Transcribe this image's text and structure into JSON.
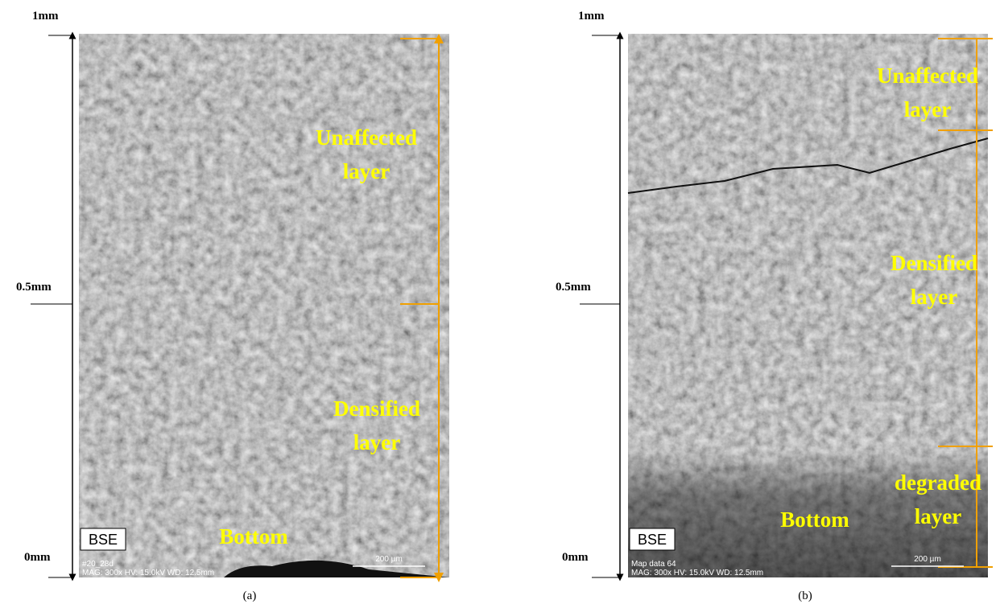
{
  "panels": [
    {
      "label": "(a)",
      "axis_labels": [
        "1mm",
        "0.5mm",
        "0mm"
      ],
      "layers": [
        [
          "Unaffected",
          "layer"
        ],
        [
          "Densified",
          "layer"
        ]
      ],
      "bottom": "Bottom",
      "detector": "BSE",
      "info": [
        "#20_28d",
        "MAG: 300x  HV: 15.0kV  WD: 12.5mm"
      ],
      "scale_bar": "200 µm"
    },
    {
      "label": "(b)",
      "axis_labels": [
        "1mm",
        "0.5mm",
        "0mm"
      ],
      "layers": [
        [
          "Unaffected",
          "layer"
        ],
        [
          "Densified",
          "layer"
        ],
        [
          "degraded",
          "layer"
        ]
      ],
      "bottom": "Bottom",
      "detector": "BSE",
      "info": [
        "Map data 64",
        "MAG: 300x  HV: 15.0kV  WD: 12.5mm"
      ],
      "scale_bar": "200 µm"
    }
  ]
}
